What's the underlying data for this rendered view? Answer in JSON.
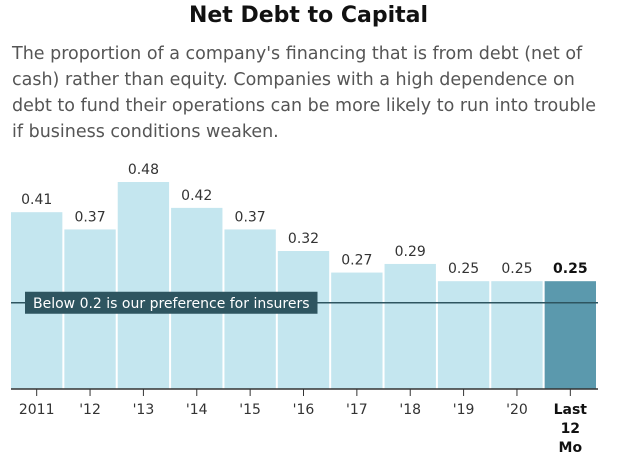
{
  "chart_data": {
    "type": "bar",
    "title": "Net Debt to Capital",
    "subtitle": "The proportion of a company's financing that is from debt (net of cash) rather than equity. Companies with a high dependence on debt to fund their operations can be more likely to run into trouble if business conditions weaken.",
    "categories": [
      "2011",
      "'12",
      "'13",
      "'14",
      "'15",
      "'16",
      "'17",
      "'18",
      "'19",
      "'20",
      "Last 12 Mo"
    ],
    "values": [
      0.41,
      0.37,
      0.48,
      0.42,
      0.37,
      0.32,
      0.27,
      0.29,
      0.25,
      0.25,
      0.25
    ],
    "value_labels": [
      "0.41",
      "0.37",
      "0.48",
      "0.42",
      "0.37",
      "0.32",
      "0.27",
      "0.29",
      "0.25",
      "0.25",
      "0.25"
    ],
    "ylim": [
      0,
      0.5
    ],
    "xlabel": "",
    "ylabel": "",
    "grid": false,
    "highlight_index": 10,
    "reference_line": {
      "value": 0.2,
      "label": "Below 0.2 is our preference for insurers"
    },
    "colors": {
      "bar": "#c4e6ef",
      "bar_highlight": "#5b99ad",
      "reference_line": "#2e5560",
      "reference_label_bg": "#2e5560",
      "reference_label_text": "#ffffff",
      "axis": "#333333",
      "value_label": "#333333"
    }
  }
}
